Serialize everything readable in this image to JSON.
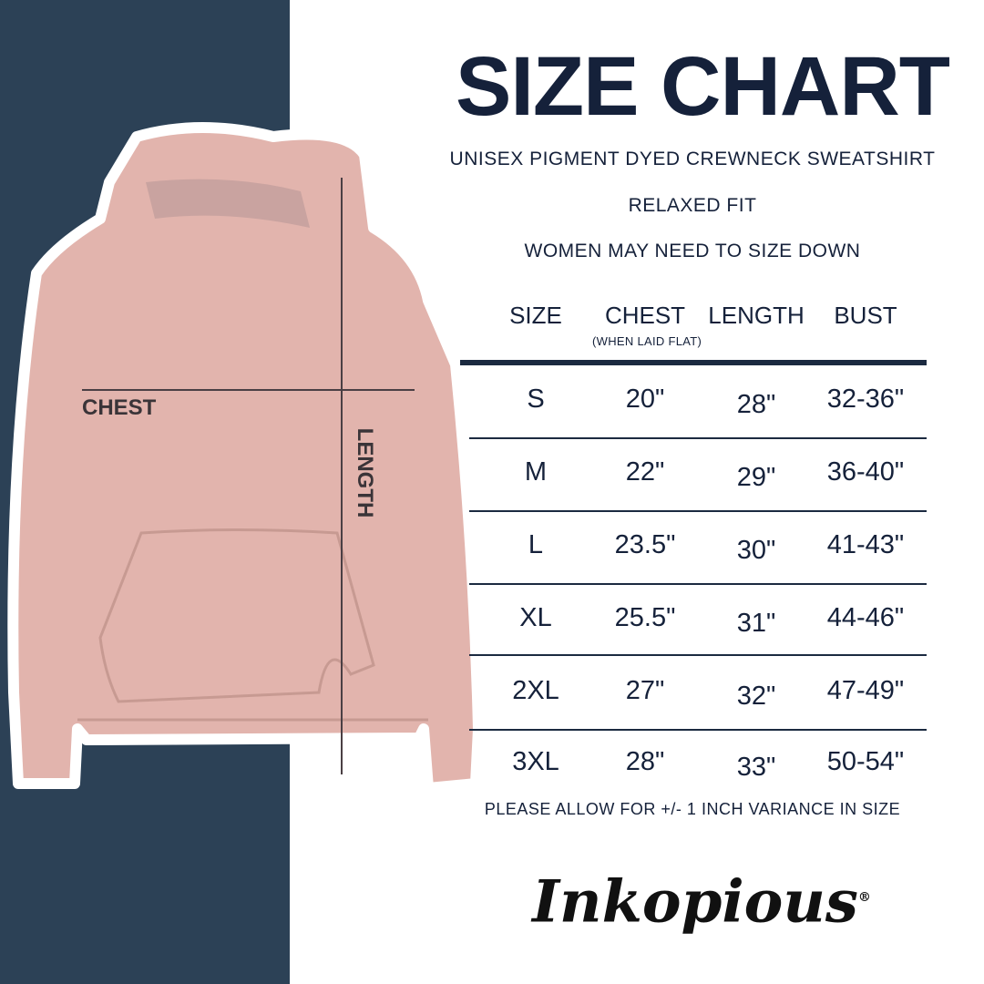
{
  "title": "SIZE CHART",
  "subtitle": "UNISEX PIGMENT DYED CREWNECK SWEATSHIRT",
  "fit": "RELAXED FIT",
  "advice": "WOMEN MAY NEED TO SIZE DOWN",
  "image_labels": {
    "chest": "CHEST",
    "length": "LENGTH"
  },
  "colors": {
    "panel": "#2c4156",
    "text": "#15213a",
    "hoodie": "#e2b4ad"
  },
  "table": {
    "headers": [
      "SIZE",
      "CHEST",
      "LENGTH",
      "BUST"
    ],
    "chest_note": "(WHEN LAID FLAT)",
    "rows": [
      [
        "S",
        "20\"",
        "28\"",
        "32-36\""
      ],
      [
        "M",
        "22\"",
        "29\"",
        "36-40\""
      ],
      [
        "L",
        "23.5\"",
        "30\"",
        "41-43\""
      ],
      [
        "XL",
        "25.5\"",
        "31\"",
        "44-46\""
      ],
      [
        "2XL",
        "27\"",
        "32\"",
        "47-49\""
      ],
      [
        "3XL",
        "28\"",
        "33\"",
        "50-54\""
      ]
    ]
  },
  "footnote": "PLEASE ALLOW FOR +/- 1 INCH VARIANCE IN SIZE",
  "brand": "Inkopious"
}
